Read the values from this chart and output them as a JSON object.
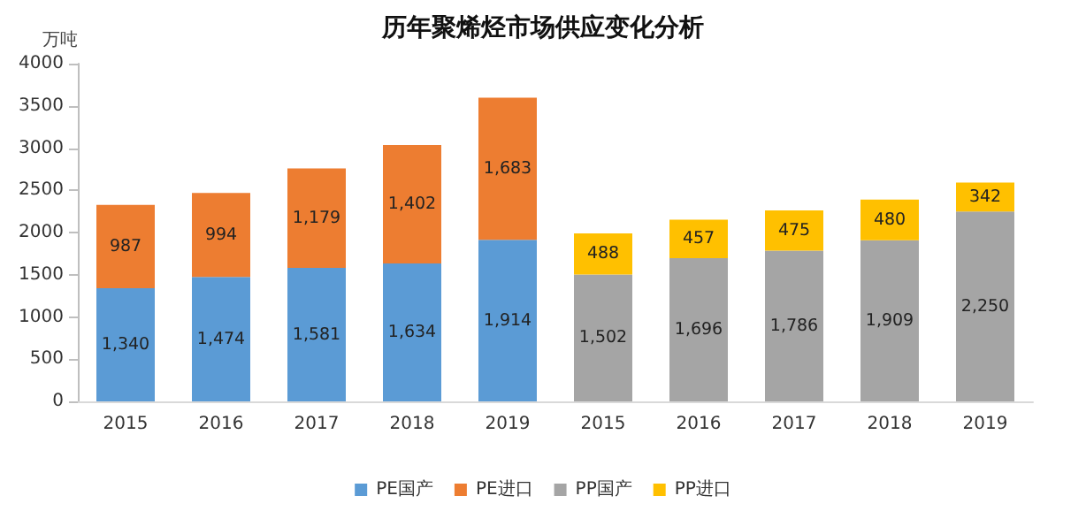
{
  "chart_data": {
    "type": "bar",
    "title": "历年聚烯烃市场供应变化分析",
    "ylabel": "万吨",
    "categories": [
      "2015",
      "2016",
      "2017",
      "2018",
      "2019",
      "2015",
      "2016",
      "2017",
      "2018",
      "2019"
    ],
    "stacked": true,
    "ylim": [
      0,
      4000
    ],
    "yticks": [
      0,
      500,
      1000,
      1500,
      2000,
      2500,
      3000,
      3500,
      4000
    ],
    "grid": false,
    "legend": "bottom",
    "series": [
      {
        "name": "PE国产",
        "color": "#5b9bd5",
        "values": [
          1340,
          1474,
          1581,
          1634,
          1914,
          null,
          null,
          null,
          null,
          null
        ],
        "value_labels": [
          "1,340",
          "1,474",
          "1,581",
          "1,634",
          "1,914",
          null,
          null,
          null,
          null,
          null
        ]
      },
      {
        "name": "PE进口",
        "color": "#ed7d31",
        "values": [
          987,
          994,
          1179,
          1402,
          1683,
          null,
          null,
          null,
          null,
          null
        ],
        "value_labels": [
          "987",
          "994",
          "1,179",
          "1,402",
          "1,683",
          null,
          null,
          null,
          null,
          null
        ]
      },
      {
        "name": "PP国产",
        "color": "#a5a5a5",
        "values": [
          null,
          null,
          null,
          null,
          null,
          1502,
          1696,
          1786,
          1909,
          2250
        ],
        "value_labels": [
          null,
          null,
          null,
          null,
          null,
          "1,502",
          "1,696",
          "1,786",
          "1,909",
          "2,250"
        ]
      },
      {
        "name": "PP进口",
        "color": "#ffc000",
        "values": [
          null,
          null,
          null,
          null,
          null,
          488,
          457,
          475,
          480,
          342
        ],
        "value_labels": [
          null,
          null,
          null,
          null,
          null,
          "488",
          "457",
          "475",
          "480",
          "342"
        ]
      }
    ]
  }
}
